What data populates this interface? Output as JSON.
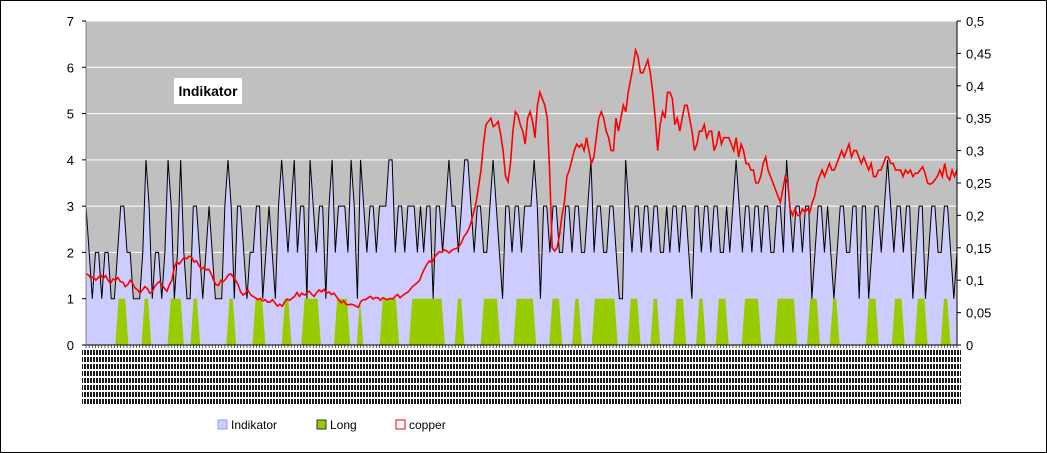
{
  "chart_data": {
    "type": "area",
    "title": "Indikator",
    "xlabel": "",
    "ylabel": "",
    "grid": true,
    "legend_position": "bottom",
    "y_left": {
      "min": 0,
      "max": 7,
      "ticks": [
        "0",
        "1",
        "2",
        "3",
        "4",
        "5",
        "6",
        "7"
      ]
    },
    "y_right": {
      "min": 0,
      "max": 0.5,
      "ticks": [
        "0",
        "0,05",
        "0,1",
        "0,15",
        "0,2",
        "0,25",
        "0,3",
        "0,35",
        "0,4",
        "0,45",
        "0,5"
      ]
    },
    "colors": {
      "plot_background": "#c0c0c0",
      "indikator_fill": "#ccccff",
      "indikator_line": "#000000",
      "long_fill": "#99cc00",
      "copper_line": "#ff0000",
      "gridline": "#ffffff"
    },
    "series": [
      {
        "name": "Indikator",
        "axis": "left",
        "kind": "area",
        "values": [
          3,
          2,
          1,
          2,
          2,
          1,
          2,
          2,
          1,
          1,
          2,
          3,
          3,
          2,
          2,
          1,
          1,
          1,
          2,
          4,
          3,
          1,
          2,
          2,
          1,
          2,
          4,
          3,
          1,
          2,
          4,
          2,
          1,
          1,
          3,
          3,
          2,
          1,
          2,
          3,
          2,
          1,
          1,
          1,
          3,
          4,
          3,
          1,
          3,
          3,
          2,
          1,
          2,
          2,
          3,
          3,
          1,
          2,
          3,
          2,
          1,
          3,
          4,
          3,
          2,
          3,
          4,
          2,
          3,
          3,
          1,
          4,
          3,
          2,
          3,
          3,
          1,
          3,
          4,
          2,
          3,
          3,
          3,
          2,
          4,
          3,
          1,
          4,
          3,
          2,
          3,
          3,
          2,
          3,
          3,
          3,
          4,
          4,
          2,
          3,
          3,
          2,
          3,
          3,
          3,
          2,
          3,
          2,
          3,
          3,
          1,
          3,
          3,
          2,
          3,
          4,
          3,
          3,
          2,
          3,
          4,
          4,
          3,
          2,
          3,
          3,
          2,
          2,
          3,
          4,
          3,
          2,
          1,
          3,
          3,
          2,
          3,
          3,
          2,
          3,
          3,
          3,
          4,
          3,
          1,
          3,
          3,
          2,
          3,
          3,
          2,
          2,
          3,
          3,
          2,
          3,
          3,
          2,
          2,
          3,
          4,
          2,
          3,
          3,
          2,
          2,
          3,
          3,
          2,
          1,
          1,
          4,
          3,
          2,
          3,
          3,
          2,
          3,
          3,
          2,
          3,
          3,
          2,
          2,
          3,
          2,
          3,
          3,
          2,
          3,
          3,
          2,
          1,
          3,
          3,
          2,
          3,
          3,
          2,
          3,
          3,
          2,
          2,
          3,
          2,
          3,
          4,
          3,
          2,
          3,
          3,
          2,
          3,
          3,
          2,
          3,
          3,
          2,
          2,
          3,
          3,
          2,
          4,
          3,
          2,
          3,
          3,
          2,
          3,
          3,
          1,
          2,
          3,
          3,
          2,
          3,
          2,
          1,
          2,
          3,
          3,
          2,
          2,
          3,
          3,
          1,
          3,
          3,
          1,
          2,
          3,
          3,
          2,
          3,
          4,
          3,
          2,
          3,
          3,
          2,
          3,
          3,
          1,
          2,
          3,
          3,
          1,
          2,
          3,
          3,
          2,
          2,
          3,
          3,
          2,
          1,
          2
        ]
      },
      {
        "name": "Long",
        "axis": "left",
        "kind": "area",
        "values": [
          0,
          0,
          0,
          0,
          0,
          0,
          0,
          0,
          0,
          0,
          1,
          1,
          1,
          0,
          0,
          0,
          0,
          0,
          1,
          1,
          0,
          0,
          0,
          0,
          0,
          0,
          1,
          1,
          1,
          1,
          0,
          0,
          0,
          1,
          1,
          0,
          0,
          0,
          0,
          0,
          0,
          0,
          0,
          0,
          1,
          1,
          0,
          0,
          0,
          0,
          0,
          0,
          1,
          1,
          1,
          0,
          0,
          0,
          0,
          0,
          0,
          1,
          1,
          0,
          0,
          0,
          0,
          1,
          1,
          1,
          1,
          1,
          0,
          0,
          0,
          0,
          0,
          1,
          1,
          1,
          1,
          0,
          0,
          0,
          1,
          0,
          0,
          0,
          0,
          0,
          0,
          1,
          1,
          1,
          1,
          1,
          0,
          0,
          0,
          0,
          1,
          1,
          1,
          1,
          1,
          1,
          1,
          1,
          1,
          1,
          0,
          0,
          0,
          0,
          1,
          1,
          0,
          0,
          0,
          0,
          0,
          0,
          1,
          1,
          1,
          1,
          1,
          0,
          0,
          0,
          0,
          0,
          1,
          1,
          1,
          1,
          1,
          1,
          0,
          0,
          0,
          0,
          0,
          1,
          1,
          1,
          0,
          0,
          0,
          0,
          1,
          1,
          0,
          0,
          0,
          0,
          1,
          1,
          1,
          1,
          1,
          1,
          1,
          0,
          0,
          0,
          0,
          1,
          1,
          1,
          0,
          0,
          0,
          0,
          1,
          1,
          0,
          0,
          0,
          0,
          0,
          1,
          1,
          1,
          0,
          0,
          0,
          0,
          1,
          1,
          0,
          0,
          0,
          0,
          1,
          1,
          1,
          0,
          0,
          0,
          0,
          0,
          1,
          1,
          1,
          1,
          1,
          0,
          0,
          0,
          0,
          0,
          1,
          1,
          1,
          1,
          1,
          1,
          0,
          0,
          0,
          0,
          1,
          1,
          1,
          0,
          0,
          0,
          0,
          1,
          1,
          0,
          0,
          0,
          0,
          0,
          0,
          0,
          0,
          0,
          1,
          1,
          1,
          0,
          0,
          0,
          0,
          0,
          1,
          1,
          1,
          0,
          0,
          0,
          0,
          1,
          1,
          1,
          0,
          0,
          0,
          0,
          0,
          1,
          1,
          0,
          0,
          0
        ]
      },
      {
        "name": "copper",
        "axis": "right",
        "kind": "line",
        "values": [
          0.11,
          0.108,
          0.103,
          0.105,
          0.1,
          0.104,
          0.108,
          0.103,
          0.107,
          0.1,
          0.095,
          0.102,
          0.1,
          0.104,
          0.098,
          0.097,
          0.09,
          0.093,
          0.1,
          0.095,
          0.088,
          0.085,
          0.08,
          0.085,
          0.09,
          0.087,
          0.08,
          0.082,
          0.09,
          0.095,
          0.098,
          0.093,
          0.087,
          0.083,
          0.093,
          0.1,
          0.12,
          0.128,
          0.125,
          0.13,
          0.135,
          0.133,
          0.137,
          0.136,
          0.128,
          0.13,
          0.123,
          0.117,
          0.12,
          0.116,
          0.117,
          0.11,
          0.1,
          0.093,
          0.092,
          0.1,
          0.098,
          0.102,
          0.108,
          0.11,
          0.105,
          0.1,
          0.093,
          0.082,
          0.077,
          0.08,
          0.085,
          0.078,
          0.075,
          0.073,
          0.07,
          0.072,
          0.068,
          0.07,
          0.066,
          0.066,
          0.07,
          0.065,
          0.06,
          0.063,
          0.06,
          0.067,
          0.071,
          0.069,
          0.072,
          0.075,
          0.081,
          0.075,
          0.08,
          0.077,
          0.08,
          0.083,
          0.078,
          0.075,
          0.081,
          0.085,
          0.082,
          0.086,
          0.08,
          0.082,
          0.078,
          0.08,
          0.075,
          0.07,
          0.065,
          0.068,
          0.063,
          0.062,
          0.063,
          0.062,
          0.06,
          0.058,
          0.067,
          0.07,
          0.07,
          0.073,
          0.075,
          0.071,
          0.073,
          0.073,
          0.069,
          0.073,
          0.071,
          0.07,
          0.072,
          0.071,
          0.075,
          0.078,
          0.073,
          0.076,
          0.079,
          0.081,
          0.085,
          0.09,
          0.093,
          0.096,
          0.1,
          0.11,
          0.118,
          0.125,
          0.13,
          0.127,
          0.135,
          0.14,
          0.144,
          0.143,
          0.147,
          0.145,
          0.142,
          0.146,
          0.148,
          0.149,
          0.152,
          0.158,
          0.167,
          0.172,
          0.179,
          0.19,
          0.205,
          0.22,
          0.245,
          0.27,
          0.31,
          0.34,
          0.345,
          0.35,
          0.337,
          0.34,
          0.345,
          0.325,
          0.3,
          0.26,
          0.252,
          0.28,
          0.33,
          0.36,
          0.355,
          0.34,
          0.33,
          0.31,
          0.35,
          0.36,
          0.345,
          0.32,
          0.37,
          0.39,
          0.38,
          0.37,
          0.35,
          0.265,
          0.15,
          0.145,
          0.15,
          0.17,
          0.2,
          0.22,
          0.26,
          0.27,
          0.285,
          0.3,
          0.31,
          0.305,
          0.31,
          0.3,
          0.32,
          0.3,
          0.28,
          0.29,
          0.32,
          0.35,
          0.36,
          0.35,
          0.33,
          0.32,
          0.3,
          0.3,
          0.35,
          0.33,
          0.35,
          0.37,
          0.36,
          0.39,
          0.41,
          0.43,
          0.455,
          0.445,
          0.42,
          0.42,
          0.43,
          0.44,
          0.42,
          0.39,
          0.35,
          0.3,
          0.34,
          0.36,
          0.35,
          0.39,
          0.39,
          0.38,
          0.34,
          0.35,
          0.33,
          0.35,
          0.37,
          0.37,
          0.35,
          0.33,
          0.3,
          0.31,
          0.33,
          0.33,
          0.34,
          0.32,
          0.33,
          0.33,
          0.3,
          0.31,
          0.33,
          0.31,
          0.32,
          0.32,
          0.32,
          0.31,
          0.3,
          0.32,
          0.29,
          0.31,
          0.3,
          0.28,
          0.28,
          0.27,
          0.27,
          0.25,
          0.25,
          0.26,
          0.28,
          0.29,
          0.27,
          0.26,
          0.25,
          0.24,
          0.23,
          0.22,
          0.24,
          0.26,
          0.25,
          0.21,
          0.2,
          0.21,
          0.2,
          0.2,
          0.21,
          0.205,
          0.21,
          0.205,
          0.22,
          0.23,
          0.25,
          0.26,
          0.27,
          0.26,
          0.27,
          0.28,
          0.27,
          0.27,
          0.28,
          0.29,
          0.3,
          0.29,
          0.3,
          0.31,
          0.29,
          0.3,
          0.3,
          0.29,
          0.28,
          0.29,
          0.28,
          0.27,
          0.28,
          0.26,
          0.26,
          0.27,
          0.27,
          0.28,
          0.29,
          0.29,
          0.28,
          0.28,
          0.27,
          0.27,
          0.27,
          0.26,
          0.27,
          0.265,
          0.27,
          0.26,
          0.265,
          0.265,
          0.27,
          0.275,
          0.265,
          0.25,
          0.248,
          0.25,
          0.255,
          0.26,
          0.27,
          0.26,
          0.28,
          0.26,
          0.255,
          0.27,
          0.26,
          0.27
        ]
      }
    ]
  },
  "legend": [
    {
      "name": "Indikator",
      "marker_fill": "#ccccff",
      "marker_border": "#9999ff"
    },
    {
      "name": "Long",
      "marker_fill": "#99cc00",
      "marker_border": "#333333"
    },
    {
      "name": "copper",
      "marker_fill": "#ffffff",
      "marker_border": "#ff0000"
    }
  ]
}
